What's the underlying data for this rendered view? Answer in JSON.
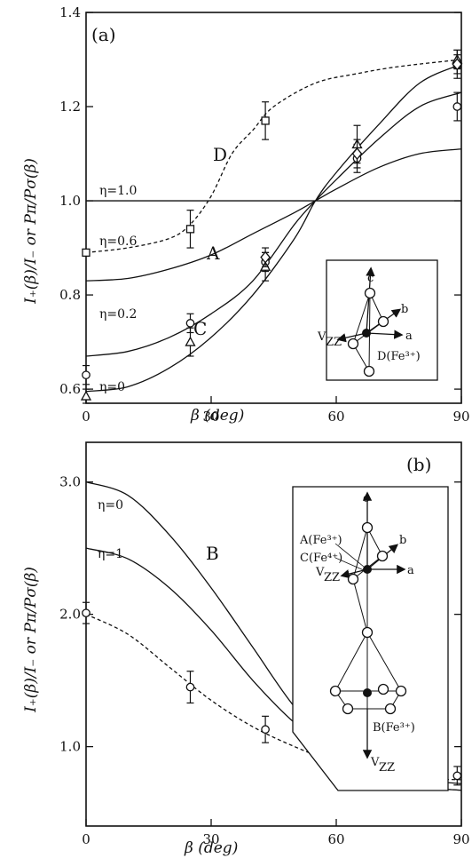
{
  "chart_data": [
    {
      "type": "line",
      "panel_label": "(a)",
      "xlabel": "β (deg)",
      "ylabel": "I₊(β)/I₋ or Pπ/Pσ(β)",
      "xlim": [
        0,
        90
      ],
      "ylim": [
        0.57,
        1.4
      ],
      "x_ticks": [
        "0",
        "30",
        "60",
        "90"
      ],
      "y_ticks": [
        "0.6",
        "0.8",
        "1.0",
        "1.2",
        "1.4"
      ],
      "grid": false,
      "curve_labels": [
        "A",
        "C",
        "D"
      ],
      "series": [
        {
          "name": "η=1.0",
          "style": "solid",
          "x": [
            0,
            90
          ],
          "y": [
            1.0,
            1.0
          ]
        },
        {
          "name": "η=0.6",
          "style": "solid",
          "x": [
            0,
            10,
            20,
            30,
            40,
            50,
            55,
            60,
            70,
            80,
            90
          ],
          "y": [
            0.83,
            0.835,
            0.855,
            0.885,
            0.93,
            0.975,
            1.0,
            1.025,
            1.07,
            1.1,
            1.11
          ]
        },
        {
          "name": "η=0.2",
          "style": "solid",
          "x": [
            0,
            10,
            20,
            30,
            40,
            50,
            55,
            60,
            70,
            80,
            90
          ],
          "y": [
            0.67,
            0.68,
            0.71,
            0.76,
            0.83,
            0.95,
            1.0,
            1.045,
            1.13,
            1.2,
            1.23
          ]
        },
        {
          "name": "η=0",
          "style": "solid",
          "x": [
            0,
            10,
            20,
            30,
            40,
            50,
            55,
            60,
            70,
            80,
            90
          ],
          "y": [
            0.595,
            0.605,
            0.645,
            0.71,
            0.8,
            0.92,
            1.0,
            1.06,
            1.16,
            1.25,
            1.29
          ]
        },
        {
          "name": "D",
          "style": "dashed",
          "x": [
            0,
            10,
            20,
            25,
            30,
            35,
            40,
            45,
            55,
            65,
            75,
            90
          ],
          "y": [
            0.89,
            0.9,
            0.92,
            0.95,
            1.01,
            1.1,
            1.15,
            1.2,
            1.25,
            1.27,
            1.285,
            1.3
          ]
        }
      ],
      "points": [
        {
          "marker": "square",
          "x": [
            0,
            25,
            43,
            89
          ],
          "y": [
            0.89,
            0.94,
            1.17,
            1.29
          ],
          "err": [
            0,
            0.04,
            0.04,
            0.03
          ]
        },
        {
          "marker": "circle",
          "x": [
            0,
            25,
            43,
            65,
            89
          ],
          "y": [
            0.63,
            0.74,
            0.87,
            1.09,
            1.2
          ],
          "err": [
            0.02,
            0.02,
            0.02,
            0.03,
            0.03
          ]
        },
        {
          "marker": "triangle",
          "x": [
            0,
            25,
            43,
            65,
            89
          ],
          "y": [
            0.585,
            0.7,
            0.86,
            1.12,
            1.3
          ],
          "err": [
            0.015,
            0.03,
            0.03,
            0.04,
            0.02
          ]
        },
        {
          "marker": "diamond",
          "x": [
            43,
            65,
            89
          ],
          "y": [
            0.88,
            1.1,
            1.29
          ],
          "err": [
            0.02,
            0.03,
            0.02
          ]
        }
      ],
      "inset": {
        "labels": [
          "c",
          "b",
          "a",
          "V",
          "ZZ",
          "D(Fe³⁺)"
        ]
      }
    },
    {
      "type": "line",
      "panel_label": "(b)",
      "xlabel": "β (deg)",
      "ylabel": "I₊(β)/I₋ or Pπ/Pσ(β)",
      "xlim": [
        0,
        90
      ],
      "ylim": [
        0.4,
        3.3
      ],
      "x_ticks": [
        "0",
        "30",
        "60",
        "90"
      ],
      "y_ticks": [
        "1.0",
        "2.0",
        "3.0"
      ],
      "grid": false,
      "curve_labels": [
        "B"
      ],
      "series": [
        {
          "name": "η=0",
          "style": "solid",
          "x": [
            0,
            10,
            20,
            30,
            40,
            50,
            60,
            70,
            80,
            90
          ],
          "y": [
            3.0,
            2.9,
            2.6,
            2.2,
            1.75,
            1.3,
            0.98,
            0.8,
            0.7,
            0.67
          ]
        },
        {
          "name": "η=1",
          "style": "solid",
          "x": [
            0,
            10,
            20,
            30,
            40,
            50,
            60,
            70,
            80,
            90
          ],
          "y": [
            2.5,
            2.42,
            2.2,
            1.88,
            1.5,
            1.18,
            0.95,
            0.82,
            0.75,
            0.72
          ]
        },
        {
          "name": "",
          "style": "dashed",
          "x": [
            0,
            10,
            20,
            30,
            40,
            50,
            60,
            70,
            80,
            90
          ],
          "y": [
            2.0,
            1.85,
            1.6,
            1.35,
            1.15,
            1.0,
            0.88,
            0.8,
            0.76,
            0.75
          ]
        }
      ],
      "points": [
        {
          "marker": "circle",
          "x": [
            0,
            25,
            43,
            65,
            89
          ],
          "y": [
            2.01,
            1.45,
            1.13,
            0.82,
            0.78
          ],
          "err": [
            0.08,
            0.12,
            0.1,
            0.06,
            0.07
          ]
        }
      ],
      "inset": {
        "labels": [
          "c",
          "b",
          "a",
          "V",
          "ZZ",
          "V",
          "ZZ",
          "A(Fe³⁺)",
          "C(Fe⁴⁺)",
          "B(Fe³⁺)"
        ]
      }
    }
  ]
}
